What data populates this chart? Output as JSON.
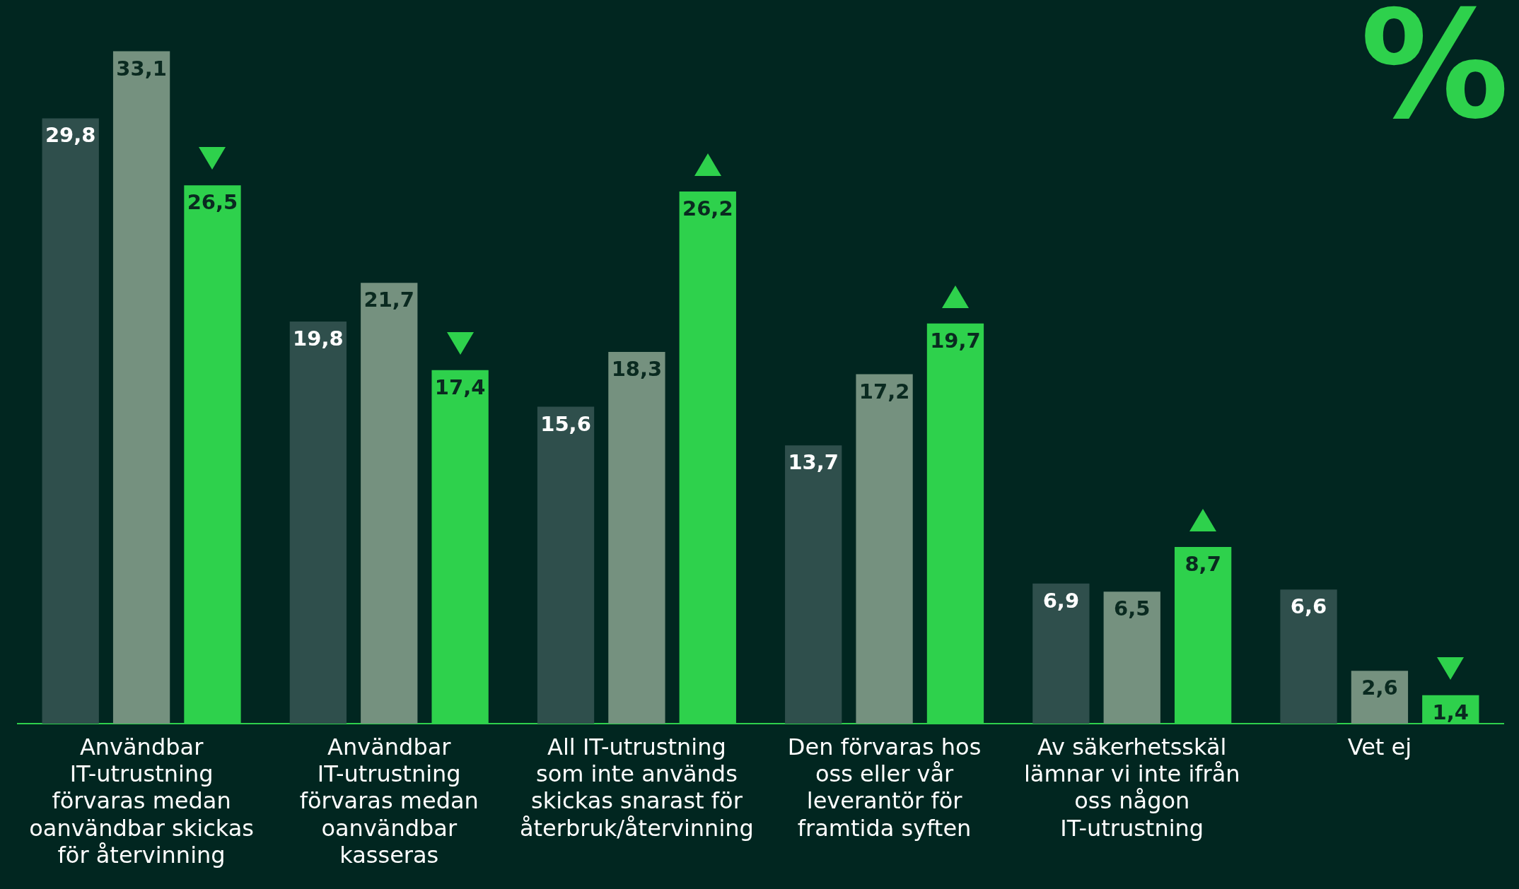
{
  "chart_data": {
    "type": "bar",
    "ylabel": "%",
    "categories": [
      "Användbar IT-utrustning förvaras medan oanvändbar skickas för återvinning",
      "Användbar IT-utrustning förvaras medan oanvändbar kasseras",
      "All IT-utrustning som inte används skickas snarast för återbruk/återvinning",
      "Den förvaras hos oss eller vår leverantör för framtida syften",
      "Av säkerhetsskäl lämnar vi inte ifrån oss någon IT-utrustning",
      "Vet ej"
    ],
    "series": [
      {
        "color": "#2f4f4c",
        "values": [
          29.8,
          19.8,
          15.6,
          13.7,
          6.9,
          6.6
        ],
        "value_labels": [
          "29,8",
          "19,8",
          "15,6",
          "13,7",
          "6,9",
          "6,6"
        ]
      },
      {
        "color": "#75917f",
        "values": [
          33.1,
          21.7,
          18.3,
          17.2,
          6.5,
          2.6
        ],
        "value_labels": [
          "33,1",
          "21,7",
          "18,3",
          "17,2",
          "6,5",
          "2,6"
        ]
      },
      {
        "color": "#2ed14c",
        "values": [
          26.5,
          17.4,
          26.2,
          19.7,
          8.7,
          1.4
        ],
        "value_labels": [
          "26,5",
          "17,4",
          "26,2",
          "19,7",
          "8,7",
          "1,4"
        ]
      }
    ],
    "legend": false
  }
}
